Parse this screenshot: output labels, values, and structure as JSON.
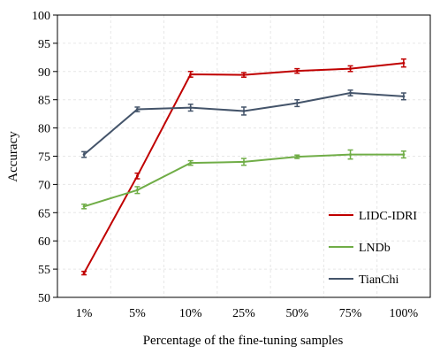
{
  "chart_data": {
    "type": "line",
    "title": "",
    "xlabel": "Percentage of the fine-tuning samples",
    "ylabel": "Accuracy",
    "categories": [
      "1%",
      "5%",
      "10%",
      "25%",
      "50%",
      "75%",
      "100%"
    ],
    "ylim": [
      50,
      100
    ],
    "yticks": [
      50,
      55,
      60,
      65,
      70,
      75,
      80,
      85,
      90,
      95,
      100
    ],
    "grid": true,
    "legend_position": "bottom-right",
    "series": [
      {
        "name": "LIDC-IDRI",
        "color": "#c00000",
        "values": [
          54.3,
          71.5,
          89.5,
          89.4,
          90.1,
          90.5,
          91.5
        ],
        "errors": [
          0.3,
          0.5,
          0.5,
          0.4,
          0.4,
          0.5,
          0.7
        ]
      },
      {
        "name": "LNDb",
        "color": "#70ad47",
        "values": [
          66.1,
          69.0,
          73.8,
          74.0,
          74.9,
          75.3,
          75.3
        ],
        "errors": [
          0.4,
          0.6,
          0.4,
          0.6,
          0.3,
          0.8,
          0.6
        ]
      },
      {
        "name": "TianChi",
        "color": "#44546a",
        "values": [
          75.3,
          83.3,
          83.6,
          83.0,
          84.4,
          86.2,
          85.6
        ],
        "errors": [
          0.5,
          0.4,
          0.6,
          0.7,
          0.6,
          0.5,
          0.6
        ]
      }
    ]
  }
}
